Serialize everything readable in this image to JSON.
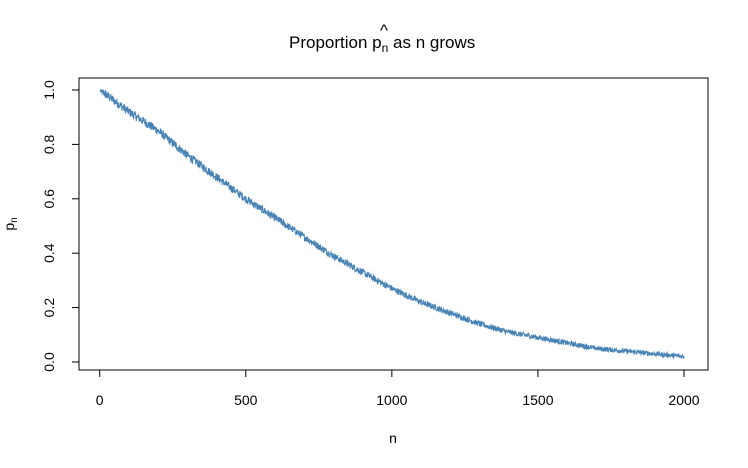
{
  "chart_data": {
    "type": "line",
    "title": {
      "prefix": "Proportion ",
      "symbol": "p",
      "hat": "^",
      "subscript": "n",
      "suffix": " as n grows"
    },
    "xlabel": "n",
    "ylabel": {
      "symbol": "p",
      "hat": "^",
      "subscript": "n"
    },
    "xlim": [
      1,
      2000
    ],
    "ylim": [
      0.0,
      1.0
    ],
    "x_ticks": [
      {
        "value": 0,
        "label": "0"
      },
      {
        "value": 500,
        "label": "500"
      },
      {
        "value": 1000,
        "label": "1000"
      },
      {
        "value": 1500,
        "label": "1500"
      },
      {
        "value": 2000,
        "label": "2000"
      }
    ],
    "y_ticks": [
      {
        "value": 0.0,
        "label": "0.0"
      },
      {
        "value": 0.2,
        "label": "0.2"
      },
      {
        "value": 0.4,
        "label": "0.4"
      },
      {
        "value": 0.6,
        "label": "0.6"
      },
      {
        "value": 0.8,
        "label": "0.8"
      },
      {
        "value": 1.0,
        "label": "1.0"
      }
    ],
    "grid": false,
    "series": [
      {
        "color": "#4682B4",
        "x": [
          1,
          100,
          200,
          300,
          400,
          500,
          600,
          700,
          800,
          900,
          1000,
          1100,
          1200,
          1300,
          1400,
          1500,
          1600,
          1700,
          1800,
          1900,
          2000
        ],
        "y": [
          1.0,
          0.92,
          0.85,
          0.76,
          0.68,
          0.6,
          0.53,
          0.46,
          0.39,
          0.33,
          0.27,
          0.22,
          0.18,
          0.14,
          0.11,
          0.09,
          0.07,
          0.05,
          0.04,
          0.03,
          0.02
        ],
        "noise": 0.012
      }
    ]
  }
}
